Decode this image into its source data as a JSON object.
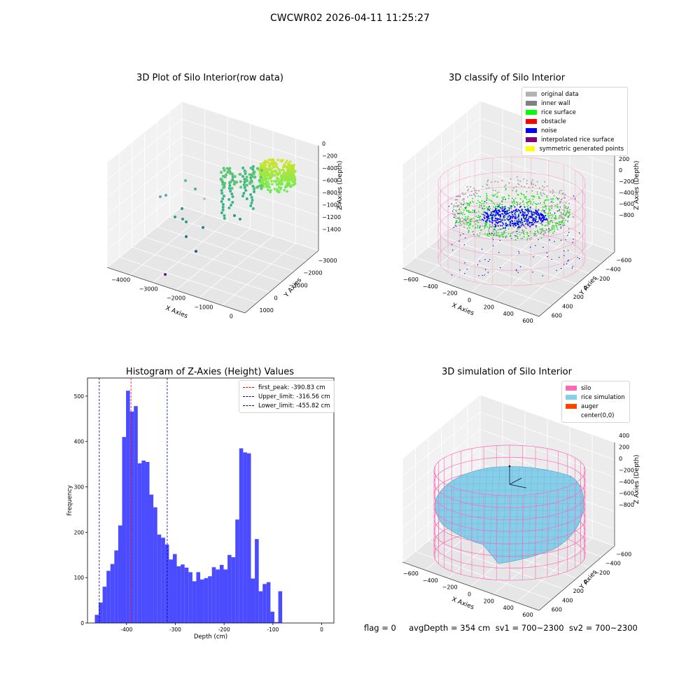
{
  "figure": {
    "title": "CWCWR02 2026-04-11 11:25:27",
    "footer": "flag = 0     avgDepth = 354 cm  sv1 = 700~2300  sv2 = 700~2300"
  },
  "colors": {
    "original_data": "#b3b3b3",
    "inner_wall": "#808080",
    "rice_surface": "#00ff00",
    "obstacle": "#ff0000",
    "noise": "#0000ff",
    "interpolated": "#800080",
    "symmetric": "#ffff00",
    "silo": "#ff69b4",
    "rice_sim": "#87ceeb",
    "auger": "#ff4500",
    "hist_bar": "#4b4bff",
    "peak_line": "#ff0000",
    "limit_line": "#0000aa"
  },
  "chart_data": [
    {
      "type": "scatter",
      "title": "3D Plot of Silo Interior(row data)",
      "xlabel": "X Axies",
      "ylabel": "Y Axies",
      "zlabel": "Z Axies (Depth)",
      "x_ticks": [
        "−4000",
        "−3000",
        "−2000",
        "−1000",
        "0"
      ],
      "y_ticks": [
        "1000",
        "0",
        "−1000",
        "−2000",
        "−3000"
      ],
      "z_ticks": [
        "0",
        "−200",
        "−400",
        "−600",
        "−800",
        "−1000",
        "−1200",
        "−1400"
      ],
      "xlim": [
        -4500,
        500
      ],
      "ylim": [
        -3500,
        1500
      ],
      "zlim": [
        -1500,
        0
      ]
    },
    {
      "type": "scatter",
      "title": "3D classify of Silo Interior",
      "xlabel": "X Axies",
      "ylabel": "Y Axies",
      "zlabel": "Z Axies (Depth)",
      "x_ticks": [
        "−600",
        "−400",
        "−200",
        "0",
        "200",
        "400",
        "600"
      ],
      "y_ticks": [
        "600",
        "400",
        "200",
        "0",
        "−200",
        "−400",
        "−600"
      ],
      "z_ticks": [
        "200",
        "0",
        "−200",
        "−400",
        "−600",
        "−800"
      ],
      "legend": [
        "original data",
        "inner wall",
        "rice surface",
        "obstacle",
        "noise",
        "interpolated rice surface",
        "symmetric generated points"
      ],
      "xlim": [
        -650,
        650
      ],
      "ylim": [
        -650,
        650
      ],
      "zlim": [
        -900,
        300
      ]
    },
    {
      "type": "bar",
      "title": "Histogram of Z-Axies (Height) Values",
      "xlabel": "Depth (cm)",
      "ylabel": "Frequency",
      "x_ticks": [
        -400,
        -300,
        -200,
        -100,
        0
      ],
      "y_ticks": [
        0,
        100,
        200,
        300,
        400,
        500
      ],
      "xlim": [
        -480,
        25
      ],
      "ylim": [
        0,
        540
      ],
      "bin_start": -465,
      "bin_width": 8,
      "values": [
        18,
        45,
        80,
        115,
        130,
        160,
        215,
        410,
        512,
        466,
        478,
        352,
        358,
        355,
        283,
        255,
        195,
        188,
        173,
        140,
        152,
        125,
        129,
        122,
        112,
        92,
        112,
        96,
        99,
        103,
        123,
        118,
        128,
        118,
        150,
        145,
        228,
        385,
        376,
        374,
        98,
        185,
        70,
        86,
        90,
        25,
        2,
        70
      ],
      "lines": [
        {
          "label": "first_peak: -390.83 cm",
          "x": -390.83,
          "style": "peak"
        },
        {
          "label": "Upper_limit: -316.56 cm",
          "x": -316.56,
          "style": "limit"
        },
        {
          "label": "Lower_limit: -455.82 cm",
          "x": -455.82,
          "style": "limit"
        }
      ]
    },
    {
      "type": "scatter",
      "title": "3D simulation of Silo Interior",
      "xlabel": "X Axies",
      "ylabel": "Y Axies",
      "zlabel": "Z Axies (Depth)",
      "x_ticks": [
        "−600",
        "−400",
        "−200",
        "0",
        "200",
        "400",
        "600"
      ],
      "y_ticks": [
        "600",
        "400",
        "200",
        "0",
        "−200",
        "−400",
        "−600"
      ],
      "z_ticks": [
        "400",
        "200",
        "0",
        "−200",
        "−400",
        "−600",
        "−800"
      ],
      "legend": [
        "silo",
        "rice simulation",
        "auger",
        "center(0,0)"
      ],
      "xlim": [
        -650,
        650
      ],
      "ylim": [
        -650,
        650
      ],
      "zlim": [
        -900,
        500
      ]
    }
  ]
}
